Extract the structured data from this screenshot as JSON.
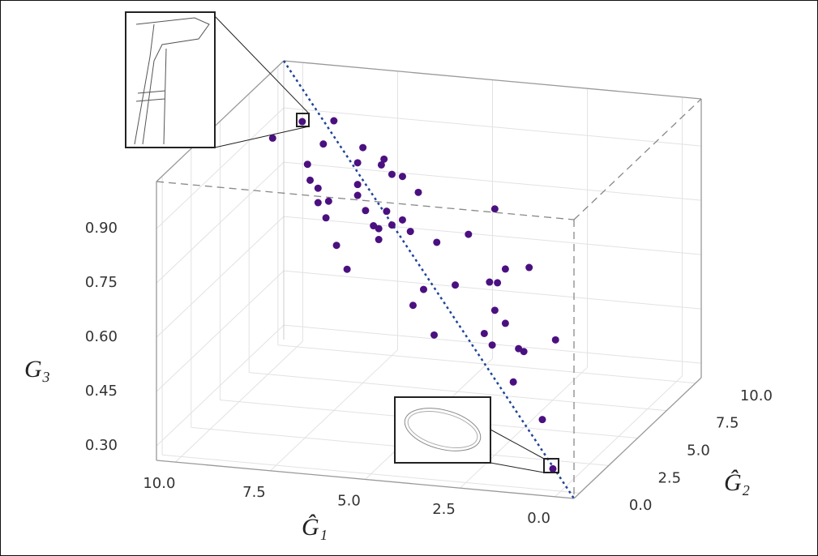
{
  "chart_data": {
    "type": "scatter3d",
    "xlabel": "Ĝ₁",
    "ylabel": "Ĝ₂",
    "zlabel": "G₃",
    "x": [
      10.0,
      9.8,
      8.6,
      9.0,
      7.5,
      9.6,
      7.7,
      6.8,
      6.7,
      9.5,
      9.2,
      7.7,
      6.4,
      6.0,
      9.2,
      8.8,
      7.7,
      5.4,
      8.9,
      7.4,
      7.1,
      6.6,
      6.9,
      6.4,
      6.0,
      2.5,
      6.9,
      5.7,
      4.7,
      3.5,
      8.5,
      8.1,
      1.2,
      2.1,
      2.7,
      2.4,
      4.0,
      5.2,
      5.6,
      2.5,
      2.1,
      4.8,
      2.9,
      2.6,
      1.6,
      1.4,
      0.2,
      1.8,
      0.7,
      0.3
    ],
    "y": [
      7.9,
      9.8,
      8.6,
      9.0,
      7.5,
      9.6,
      7.7,
      6.8,
      6.7,
      9.5,
      9.2,
      7.7,
      6.4,
      6.0,
      9.2,
      8.8,
      7.7,
      5.4,
      8.9,
      7.4,
      7.1,
      6.6,
      6.9,
      6.4,
      6.0,
      2.5,
      6.9,
      5.7,
      4.7,
      3.5,
      8.5,
      8.1,
      1.2,
      2.1,
      2.7,
      2.4,
      4.0,
      5.2,
      5.6,
      2.5,
      2.1,
      4.8,
      2.9,
      2.6,
      1.6,
      1.4,
      0.2,
      1.8,
      0.7,
      0.3
    ],
    "z": [
      0.9,
      0.89,
      0.94,
      0.86,
      0.91,
      0.78,
      0.86,
      0.89,
      0.91,
      0.74,
      0.73,
      0.8,
      0.88,
      0.89,
      0.69,
      0.71,
      0.77,
      0.87,
      0.66,
      0.74,
      0.71,
      0.77,
      0.71,
      0.74,
      0.77,
      0.94,
      0.68,
      0.75,
      0.76,
      0.83,
      0.6,
      0.55,
      0.83,
      0.79,
      0.73,
      0.74,
      0.67,
      0.61,
      0.55,
      0.66,
      0.64,
      0.5,
      0.58,
      0.56,
      0.59,
      0.59,
      0.67,
      0.49,
      0.43,
      0.31
    ],
    "color": "#4b1080",
    "xlim": [
      10.5,
      -0.5
    ],
    "ylim": [
      -0.5,
      10.5
    ],
    "zlim": [
      0.26,
      1.03
    ],
    "xticks": [
      {
        "value": 10,
        "label": "10.0"
      },
      7.5,
      {
        "value": 5,
        "label": "5.0"
      },
      2.5,
      {
        "value": 0,
        "label": "0.0"
      }
    ],
    "yticks": [
      {
        "value": 0,
        "label": "0.0"
      },
      2.5,
      {
        "value": 5,
        "label": "5.0"
      },
      7.5,
      {
        "value": 10,
        "label": "10.0"
      }
    ],
    "zticks": [
      {
        "value": 0.3,
        "label": "0.30"
      },
      0.45,
      {
        "value": 0.6,
        "label": "0.60"
      },
      0.75,
      {
        "value": 0.9,
        "label": "0.90"
      }
    ],
    "grid": true
  }
}
